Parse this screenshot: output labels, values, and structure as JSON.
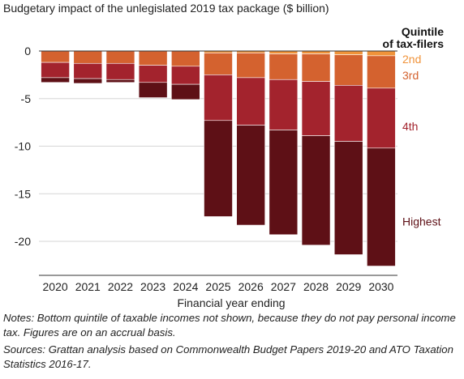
{
  "chart_data": {
    "type": "bar",
    "stacked": true,
    "title": "Budgetary impact of the unlegislated 2019 tax package ($ billion)",
    "xlabel": "Financial year ending",
    "ylabel": "",
    "ylim": [
      -23,
      0
    ],
    "yticks": [
      0,
      -5,
      -10,
      -15,
      -20
    ],
    "ytick_labels": [
      "0",
      "-5",
      "-10",
      "-15",
      "-20"
    ],
    "grid": true,
    "legend_title_line1": "Quintile",
    "legend_title_line2": "of tax-filers",
    "categories": [
      "2020",
      "2021",
      "2022",
      "2023",
      "2024",
      "2025",
      "2026",
      "2027",
      "2028",
      "2029",
      "2030"
    ],
    "series": [
      {
        "name": "2nd",
        "color": "#f0933a",
        "values": [
          0.0,
          0.0,
          0.0,
          0.0,
          0.0,
          -0.2,
          -0.2,
          -0.3,
          -0.3,
          -0.4,
          -0.5
        ]
      },
      {
        "name": "3rd",
        "color": "#d4622f",
        "values": [
          -1.2,
          -1.3,
          -1.3,
          -1.5,
          -1.6,
          -2.3,
          -2.6,
          -2.7,
          -2.9,
          -3.2,
          -3.4
        ]
      },
      {
        "name": "4th",
        "color": "#a3232d",
        "values": [
          -1.6,
          -1.6,
          -1.7,
          -1.8,
          -1.9,
          -4.8,
          -5.0,
          -5.3,
          -5.7,
          -5.9,
          -6.3
        ]
      },
      {
        "name": "Highest",
        "color": "#5e1016",
        "values": [
          -0.5,
          -0.5,
          -0.3,
          -1.6,
          -1.6,
          -10.1,
          -10.5,
          -11.0,
          -11.5,
          -11.9,
          -12.4
        ]
      }
    ]
  },
  "notes": "Notes: Bottom quintile of taxable incomes not shown, because they do not pay personal income tax. Figures are on an accrual basis.",
  "sources": "Sources: Grattan analysis based on Commonwealth Budget Papers 2019-20 and ATO Taxation Statistics 2016-17."
}
